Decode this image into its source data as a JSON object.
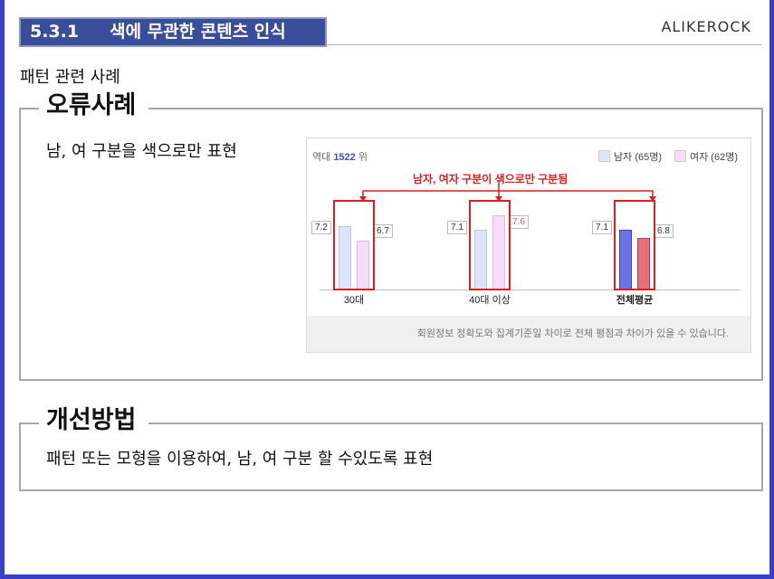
{
  "header": {
    "section": "5.3.1",
    "title": "색에 무관한 콘텐츠 인식",
    "brand": "ALIKEROCK"
  },
  "subtitle": "패턴 관련 사례",
  "error_case": {
    "title": "오류사례",
    "text": "남, 여 구분을 색으로만 표현"
  },
  "improvement": {
    "title": "개선방법",
    "text": "패턴 또는 모형을 이용하여, 남, 여 구분 할 수있도록 표현"
  },
  "chart_data": {
    "type": "bar",
    "rank_prefix": "역대",
    "rank_value": "1522",
    "rank_suffix": "위",
    "annotation": "남자, 여자 구분이 색으로만 구분됨",
    "categories": [
      "30대",
      "40대 이상",
      "전체평균"
    ],
    "series": [
      {
        "name": "남자 (65명)",
        "values": [
          7.2,
          7.1,
          7.1
        ],
        "labels": [
          "7.2",
          "7.1",
          "7.1"
        ]
      },
      {
        "name": "여자 (62명)",
        "values": [
          6.7,
          7.6,
          6.8
        ],
        "labels": [
          "6.7",
          "7.6",
          "6.8"
        ]
      }
    ],
    "colors": {
      "male_light": "#dde5fb",
      "female_light": "#f7ddf7",
      "male_strong": "#6b72e6",
      "female_strong": "#e8707a",
      "highlight": "#e01d1d"
    },
    "footer_note": "회원정보 정확도와 집계기준일 차이로 전체 평점과 차이가 있을 수 있습니다."
  }
}
